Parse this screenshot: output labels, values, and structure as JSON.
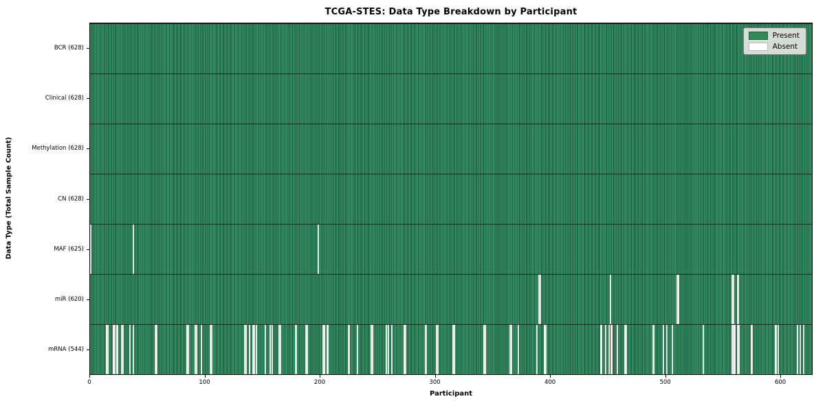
{
  "title": "TCGA-STES: Data Type Breakdown by Participant",
  "xlabel": "Participant",
  "ylabel": "Data Type (Total Sample Count)",
  "legend": {
    "present_label": "Present",
    "absent_label": "Absent"
  },
  "colors": {
    "present": "#2e8b57",
    "present_edge": "#1e5e3a",
    "absent": "#ffffff",
    "legend_background": "#d6dcd6",
    "axes_border": "#000000"
  },
  "chart_data": {
    "type": "heatmap",
    "title": "TCGA-STES: Data Type Breakdown by Participant",
    "xlabel": "Participant",
    "ylabel": "Data Type (Total Sample Count)",
    "legend_entries": [
      "Present",
      "Absent"
    ],
    "legend_position": "upper right",
    "x_axis": {
      "min": 0,
      "max": 628,
      "ticks": [
        0,
        100,
        200,
        300,
        400,
        500,
        600
      ]
    },
    "total_participants": 628,
    "rows": [
      {
        "data_type": "BCR",
        "label": "BCR (628)",
        "present_count": 628,
        "absent_count": 0,
        "absent_participants": []
      },
      {
        "data_type": "Clinical",
        "label": "Clinical (628)",
        "present_count": 628,
        "absent_count": 0,
        "absent_participants": []
      },
      {
        "data_type": "Methylation",
        "label": "Methylation (628)",
        "present_count": 628,
        "absent_count": 0,
        "absent_participants": []
      },
      {
        "data_type": "CN",
        "label": "CN (628)",
        "present_count": 628,
        "absent_count": 0,
        "absent_participants": []
      },
      {
        "data_type": "MAF",
        "label": "MAF (625)",
        "present_count": 625,
        "absent_count": 3,
        "absent_participants": [
          0,
          37,
          198
        ]
      },
      {
        "data_type": "miR",
        "label": "miR (620)",
        "present_count": 620,
        "absent_count": 8,
        "absent_participants": [
          390,
          391,
          452,
          510,
          511,
          558,
          559,
          563
        ]
      },
      {
        "data_type": "mRNA",
        "label": "mRNA (544)",
        "present_count": 544,
        "absent_count": 84,
        "absent_participants": [
          14,
          15,
          20,
          21,
          23,
          27,
          28,
          34,
          37,
          56,
          57,
          84,
          85,
          91,
          92,
          96,
          104,
          105,
          134,
          135,
          138,
          141,
          142,
          144,
          152,
          156,
          158,
          164,
          165,
          178,
          179,
          187,
          188,
          202,
          203,
          206,
          224,
          225,
          232,
          244,
          245,
          257,
          259,
          262,
          273,
          274,
          291,
          292,
          301,
          302,
          315,
          316,
          342,
          343,
          365,
          366,
          372,
          388,
          395,
          396,
          444,
          448,
          451,
          453,
          458,
          465,
          466,
          489,
          490,
          498,
          501,
          506,
          533,
          558,
          559,
          560,
          563,
          564,
          575,
          596,
          598,
          615,
          617,
          620
        ]
      }
    ]
  }
}
